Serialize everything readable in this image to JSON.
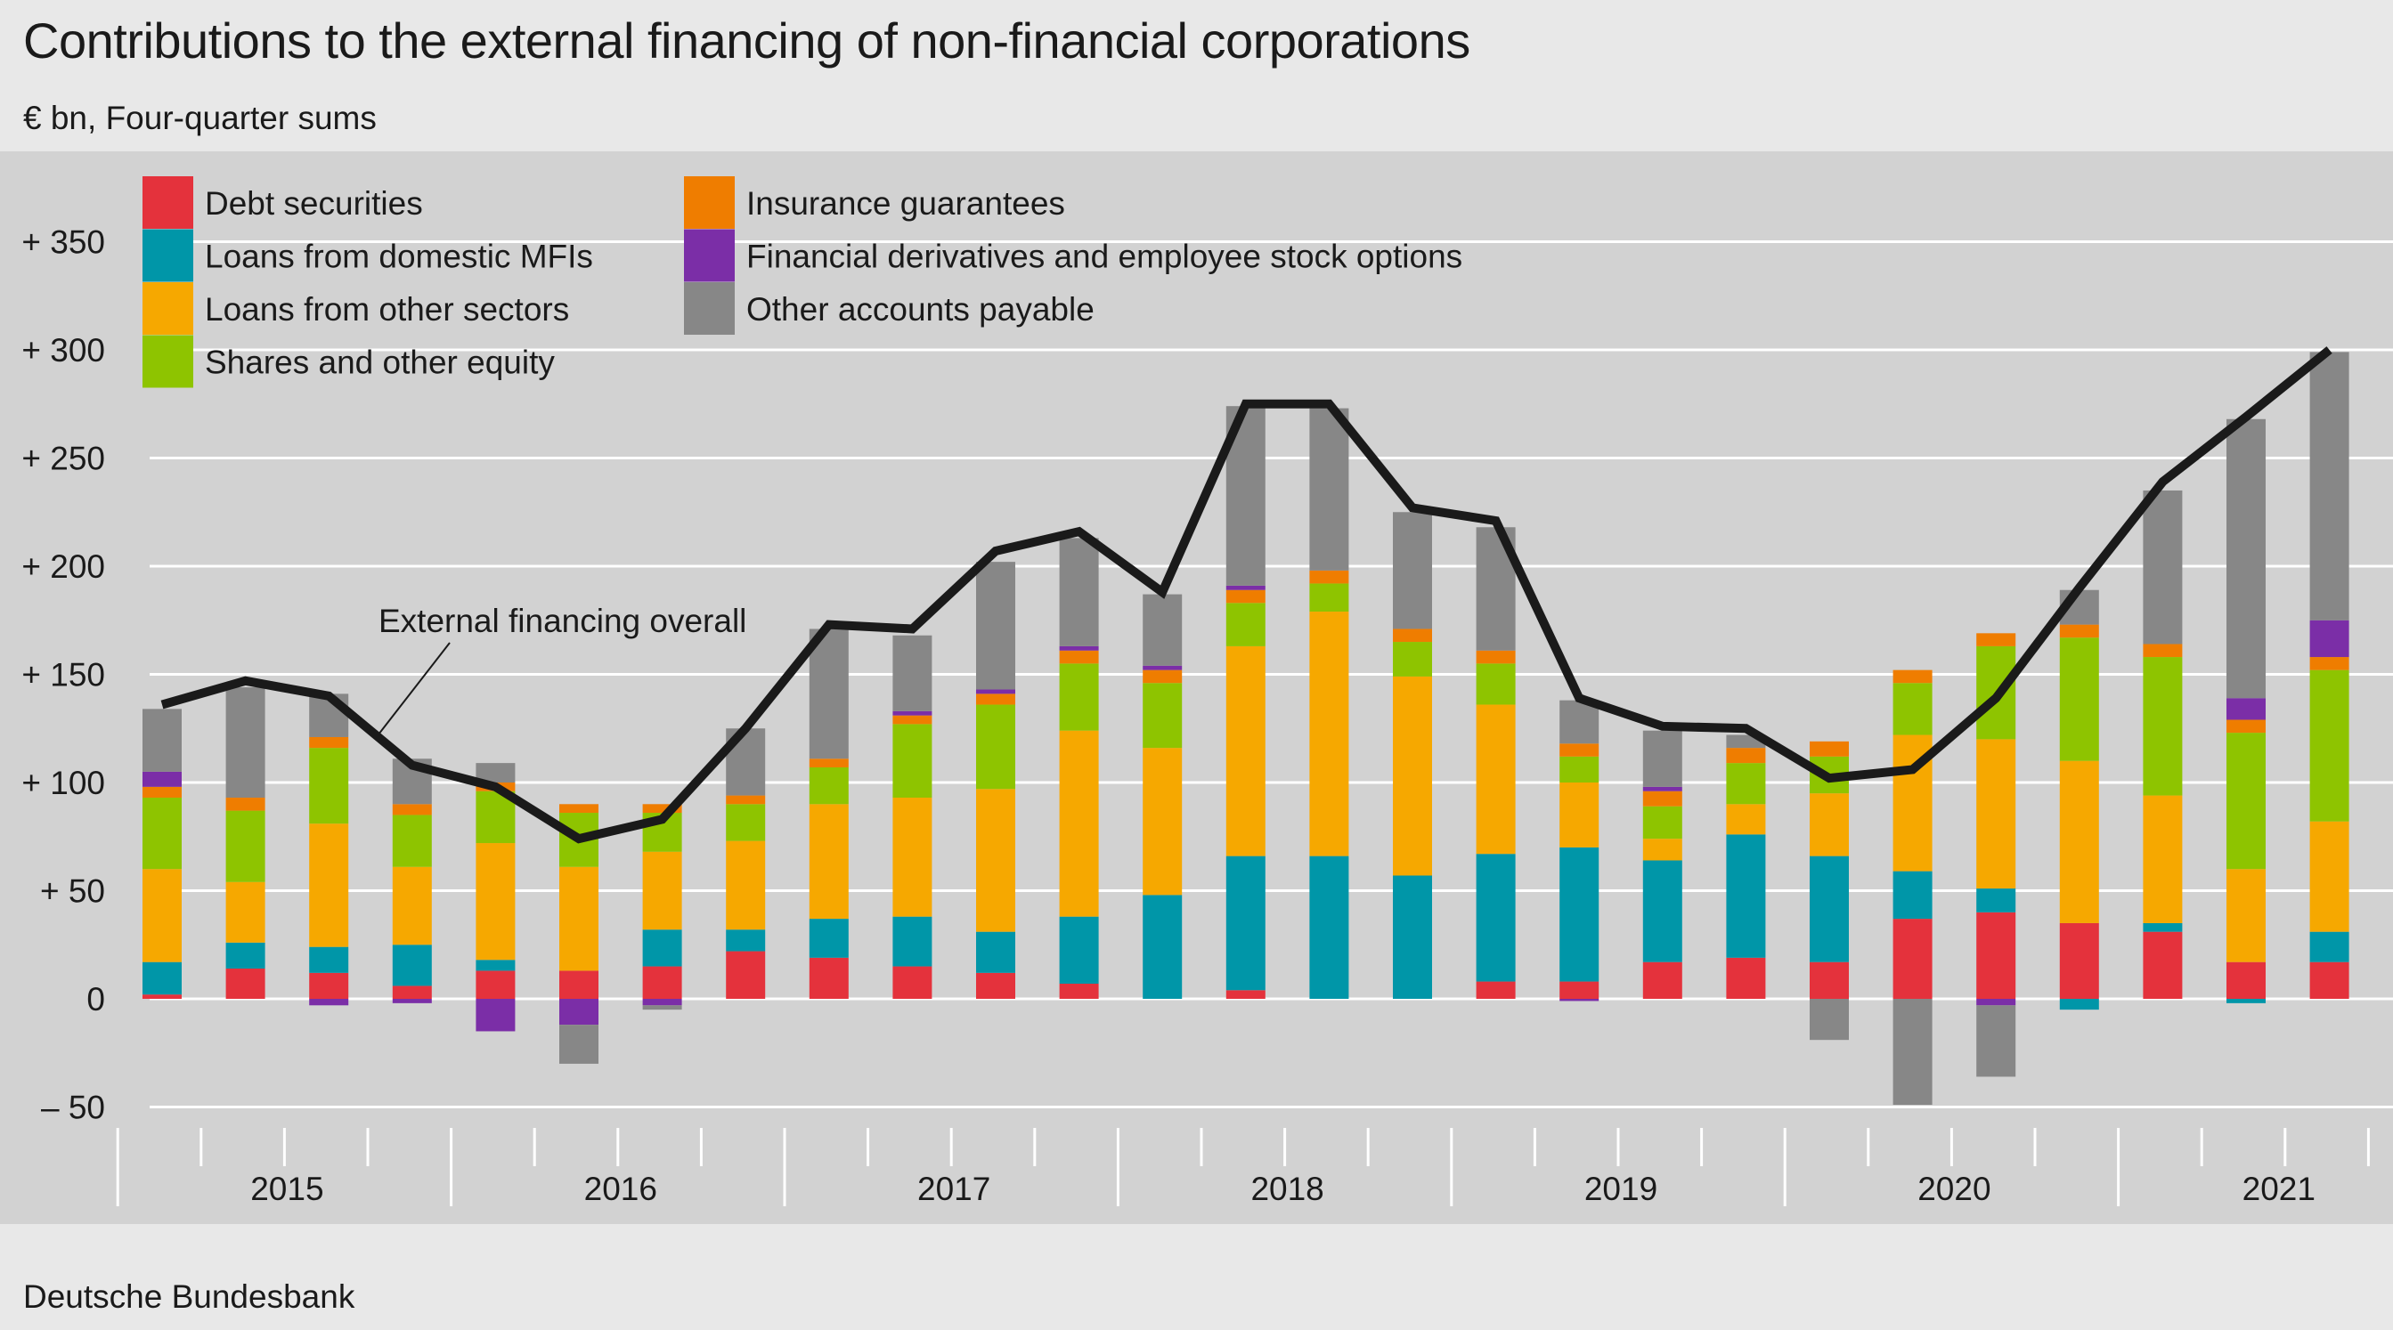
{
  "title": "Contributions to the external financing of non-financial corporations",
  "subtitle": "€ bn, Four-quarter sums",
  "source": "Deutsche Bundesbank",
  "chart_data": {
    "type": "bar",
    "stacked": true,
    "title": "Contributions to the external financing of non-financial corporations",
    "subtitle": "€ bn, Four-quarter sums",
    "ylim": [
      -50,
      380
    ],
    "yticks": [
      {
        "value": 350,
        "label": "+ 350"
      },
      {
        "value": 300,
        "label": "+ 300"
      },
      {
        "value": 250,
        "label": "+ 250"
      },
      {
        "value": 200,
        "label": "+ 200"
      },
      {
        "value": 150,
        "label": "+ 150"
      },
      {
        "value": 100,
        "label": "+ 100"
      },
      {
        "value": 50,
        "label": "+   50"
      },
      {
        "value": 0,
        "label": "0"
      },
      {
        "value": -50,
        "label": "–   50"
      }
    ],
    "grid": true,
    "legend_position": "top-left",
    "years": [
      "2015",
      "2016",
      "2017",
      "2018",
      "2019",
      "2020",
      "2021"
    ],
    "quarters_per_year": 4,
    "categories": [
      "2015 Q1",
      "2015 Q2",
      "2015 Q3",
      "2015 Q4",
      "2016 Q1",
      "2016 Q2",
      "2016 Q3",
      "2016 Q4",
      "2017 Q1",
      "2017 Q2",
      "2017 Q3",
      "2017 Q4",
      "2018 Q1",
      "2018 Q2",
      "2018 Q3",
      "2018 Q4",
      "2019 Q1",
      "2019 Q2",
      "2019 Q3",
      "2019 Q4",
      "2020 Q1",
      "2020 Q2",
      "2020 Q3",
      "2020 Q4",
      "2021 Q1",
      "2021 Q2",
      "2021 Q3",
      "2021 Q4"
    ],
    "series": [
      {
        "name": "Debt securities",
        "color": "#e4323c",
        "values": [
          2,
          14,
          12,
          6,
          13,
          13,
          15,
          22,
          19,
          15,
          12,
          7,
          0,
          4,
          0,
          0,
          8,
          8,
          17,
          19,
          17,
          37,
          40,
          35,
          31,
          17,
          17,
          0
        ]
      },
      {
        "name": "Loans from domestic MFIs",
        "color": "#0096a8",
        "values": [
          15,
          12,
          12,
          19,
          5,
          0,
          17,
          10,
          18,
          23,
          19,
          31,
          48,
          62,
          66,
          57,
          59,
          62,
          47,
          57,
          49,
          22,
          11,
          -5,
          4,
          -2,
          14,
          0
        ]
      },
      {
        "name": "Loans from other sectors",
        "color": "#f6a800",
        "values": [
          43,
          28,
          57,
          36,
          54,
          48,
          36,
          41,
          53,
          55,
          66,
          86,
          68,
          97,
          113,
          92,
          69,
          30,
          10,
          14,
          29,
          63,
          69,
          75,
          59,
          43,
          51,
          0
        ]
      },
      {
        "name": "Shares and other equity",
        "color": "#8ec400",
        "values": [
          33,
          33,
          35,
          24,
          24,
          25,
          18,
          17,
          17,
          34,
          39,
          31,
          30,
          20,
          13,
          16,
          19,
          12,
          15,
          19,
          17,
          24,
          43,
          57,
          64,
          63,
          70,
          0
        ]
      },
      {
        "name": "Insurance guarantees",
        "color": "#ef7d00",
        "values": [
          5,
          6,
          5,
          5,
          4,
          4,
          4,
          4,
          4,
          4,
          5,
          6,
          6,
          6,
          6,
          6,
          6,
          6,
          7,
          7,
          7,
          6,
          6,
          6,
          6,
          6,
          6,
          0
        ]
      },
      {
        "name": "Financial derivatives and employee stock options",
        "color": "#7b2ea7",
        "values": [
          7,
          0,
          -3,
          -2,
          -15,
          -12,
          -3,
          0,
          0,
          2,
          2,
          2,
          2,
          2,
          0,
          0,
          0,
          -1,
          2,
          0,
          0,
          0,
          -3,
          0,
          0,
          10,
          17,
          0
        ]
      },
      {
        "name": "Other accounts payable",
        "color": "#878787",
        "values": [
          29,
          51,
          20,
          21,
          9,
          -18,
          -2,
          31,
          60,
          35,
          59,
          50,
          33,
          83,
          75,
          54,
          57,
          20,
          26,
          6,
          -19,
          -49,
          -33,
          16,
          71,
          129,
          124,
          0
        ]
      }
    ],
    "line": {
      "name": "External financing overall",
      "color": "#1a1a1a",
      "values": [
        136,
        147,
        140,
        108,
        98,
        74,
        83,
        125,
        173,
        171,
        207,
        216,
        188,
        275,
        275,
        227,
        221,
        139,
        126,
        125,
        102,
        106,
        139,
        190,
        239,
        269,
        300,
        0
      ]
    }
  }
}
